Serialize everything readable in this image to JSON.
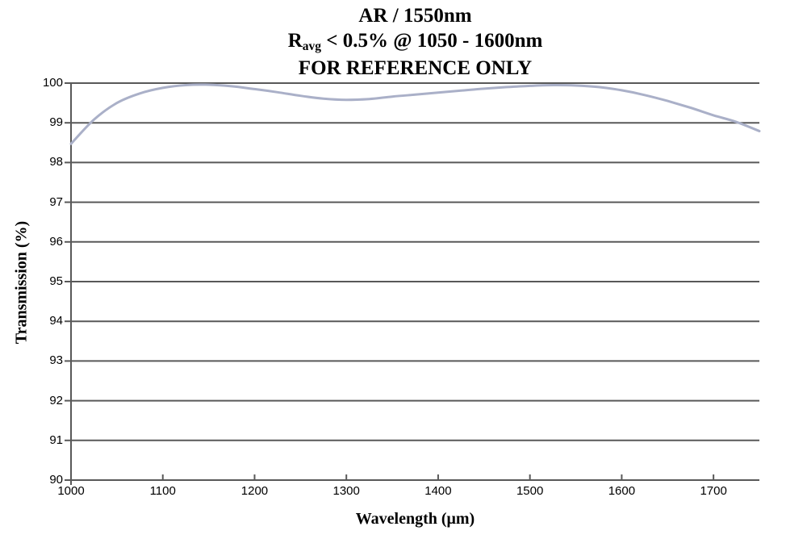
{
  "title": {
    "line1": "AR / 1550nm",
    "line2_prefix": "R",
    "line2_sub": "avg",
    "line2_rest": " < 0.5% @ 1050 - 1600nm",
    "line3": "FOR REFERENCE ONLY"
  },
  "colors": {
    "background": "#ffffff",
    "axis": "#595959",
    "grid": "#595959",
    "line": "#aab0c8",
    "text": "#000000"
  },
  "chart_data": {
    "type": "line",
    "title": "AR / 1550nm",
    "subtitle": "Ravg < 0.5% @ 1050 - 1600nm",
    "note": "FOR REFERENCE ONLY",
    "xlabel": "Wavelength (μm)",
    "ylabel": "Transmission (%)",
    "xlim": [
      1000,
      1750
    ],
    "ylim": [
      90,
      100
    ],
    "x_ticks": [
      1000,
      1100,
      1200,
      1300,
      1400,
      1500,
      1600,
      1700
    ],
    "y_ticks": [
      90,
      91,
      92,
      93,
      94,
      95,
      96,
      97,
      98,
      99,
      100
    ],
    "grid": "horizontal",
    "legend": "none",
    "series": [
      {
        "name": "Transmission",
        "color": "#aab0c8",
        "x": [
          1000,
          1025,
          1050,
          1075,
          1100,
          1125,
          1150,
          1175,
          1200,
          1225,
          1250,
          1275,
          1300,
          1325,
          1350,
          1375,
          1400,
          1425,
          1450,
          1475,
          1500,
          1525,
          1550,
          1575,
          1600,
          1625,
          1650,
          1675,
          1700,
          1725,
          1750
        ],
        "y": [
          98.47,
          99.08,
          99.5,
          99.74,
          99.88,
          99.95,
          99.96,
          99.92,
          99.85,
          99.77,
          99.68,
          99.61,
          99.58,
          99.6,
          99.66,
          99.71,
          99.76,
          99.81,
          99.86,
          99.9,
          99.93,
          99.95,
          99.94,
          99.9,
          99.82,
          99.7,
          99.55,
          99.38,
          99.19,
          99.02,
          98.79
        ]
      }
    ]
  }
}
